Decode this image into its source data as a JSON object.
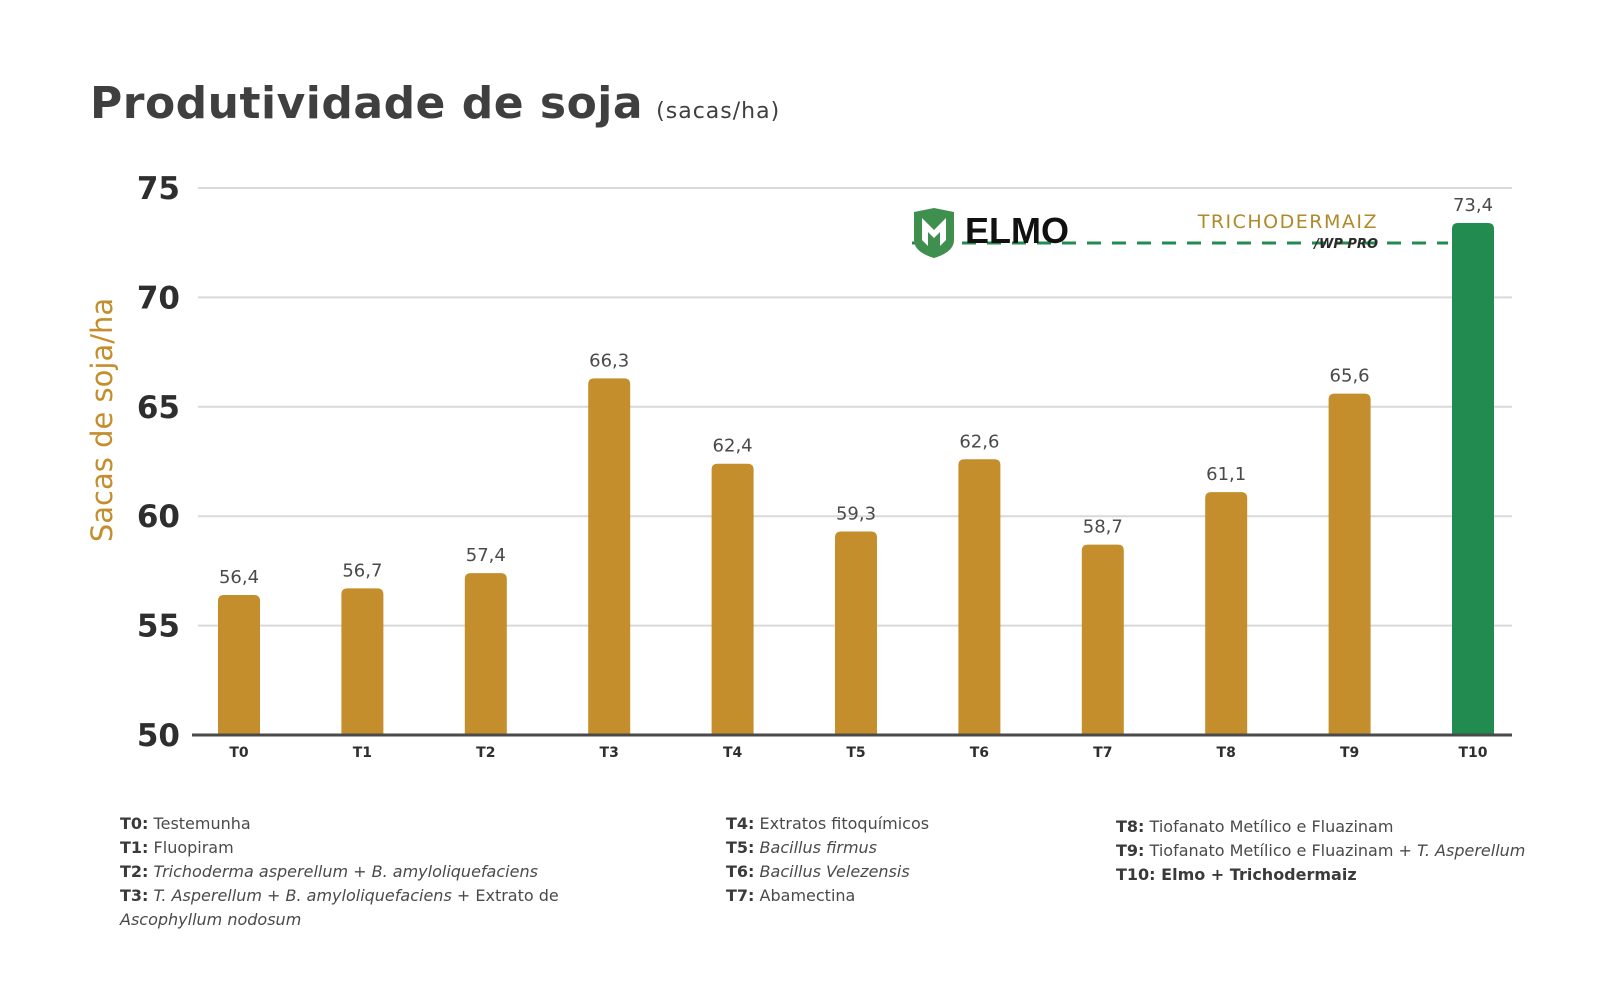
{
  "title": {
    "main": "Produtividade de soja",
    "unit": "(sacas/ha)"
  },
  "colors": {
    "bar": "#C48E2C",
    "highlight": "#228B50",
    "ylabel": "#C48E2C",
    "grid": "#d9d9d9",
    "axis": "#4a4a4a",
    "dashed": "#228B50"
  },
  "logos": {
    "elmo": "ELMO",
    "tricho_main": "TRICHODERMAIZ",
    "tricho_sub": "/WP PRO"
  },
  "chart_data": {
    "type": "bar",
    "ylabel": "Sacas de soja/ha",
    "ylim": [
      50,
      75
    ],
    "yticks": [
      "50",
      "55",
      "60",
      "65",
      "70",
      "75"
    ],
    "categories": [
      "T0",
      "T1",
      "T2",
      "T3",
      "T4",
      "T5",
      "T6",
      "T7",
      "T8",
      "T9",
      "T10"
    ],
    "values": [
      56.4,
      56.7,
      57.4,
      66.3,
      62.4,
      59.3,
      62.6,
      58.7,
      61.1,
      65.6,
      73.4
    ],
    "labels": [
      "56,4",
      "56,7",
      "57,4",
      "66,3",
      "62,4",
      "59,3",
      "62,6",
      "58,7",
      "61,1",
      "65,6",
      "73,4"
    ],
    "highlight_index": 10,
    "grid": true,
    "reference_line": 73.4
  },
  "legend": [
    [
      {
        "code": "T0:",
        "text": "Testemunha"
      },
      {
        "code": "T1:",
        "text": "Fluopiram"
      },
      {
        "code": "T2:",
        "text": "Trichoderma asperellum + B. amyloliquefaciens"
      },
      {
        "code": "T3:",
        "text": "T. Asperellum + B. amyloliquefaciens + Extrato de Ascophyllum nodosum"
      }
    ],
    [
      {
        "code": "T4:",
        "text": "Extratos fitoquímicos"
      },
      {
        "code": "T5:",
        "text": "Bacillus firmus"
      },
      {
        "code": "T6:",
        "text": "Bacillus Velezensis"
      },
      {
        "code": "T7:",
        "text": "Abamectina"
      }
    ],
    [
      {
        "code": "T8:",
        "text": "Tiofanato Metílico e Fluazinam"
      },
      {
        "code": "T9:",
        "text": "Tiofanato Metílico e Fluazinam + T. Asperellum"
      },
      {
        "code": "T10:",
        "text": "Elmo + Trichodermaiz"
      }
    ]
  ]
}
